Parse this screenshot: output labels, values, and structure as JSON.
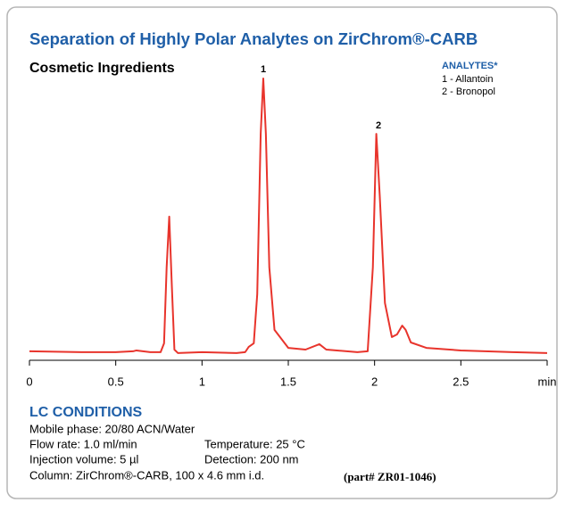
{
  "chart_data": {
    "type": "line",
    "title": "Separation of Highly Polar Analytes on ZirChrom®-CARB",
    "subtitle": "Cosmetic Ingredients",
    "legend": {
      "title": "ANALYTES*",
      "items": [
        "1 - Allantoin",
        "2 - Bronopol"
      ]
    },
    "peak_labels": [
      "1",
      "2"
    ],
    "color": "#e8342c",
    "x": [
      0,
      0.3,
      0.5,
      0.6,
      0.62,
      0.7,
      0.76,
      0.78,
      0.795,
      0.81,
      0.825,
      0.84,
      0.86,
      1.0,
      1.2,
      1.25,
      1.27,
      1.3,
      1.32,
      1.34,
      1.355,
      1.37,
      1.39,
      1.42,
      1.5,
      1.6,
      1.68,
      1.72,
      1.9,
      1.96,
      1.99,
      2.01,
      2.03,
      2.06,
      2.1,
      2.13,
      2.16,
      2.18,
      2.21,
      2.3,
      2.5,
      2.8,
      3
    ],
    "values": [
      1.9,
      1.6,
      1.6,
      1.9,
      2.2,
      1.6,
      1.6,
      4.7,
      31.3,
      49.1,
      25,
      2.5,
      1.3,
      1.6,
      1.3,
      1.6,
      3.4,
      4.7,
      21.9,
      78.1,
      97.5,
      78.1,
      31.3,
      9.4,
      3.1,
      2.5,
      4.4,
      2.5,
      1.6,
      1.9,
      31.3,
      78.1,
      56.3,
      18.8,
      6.9,
      7.8,
      10.9,
      9.4,
      5,
      3.1,
      2.2,
      1.6,
      1.3
    ],
    "xlim": [
      0,
      3
    ],
    "xticks": [
      0,
      0.5,
      1,
      1.5,
      2,
      2.5,
      {
        "value": 3,
        "label": "min"
      }
    ],
    "ylim": [
      0,
      100
    ]
  },
  "conditions": {
    "title": "LC CONDITIONS",
    "rows": [
      [
        "Mobile phase: 20/80 ACN/Water"
      ],
      [
        "Flow rate: 1.0 ml/min",
        "Temperature: 25 °C"
      ],
      [
        "Injection volume: 5 µl",
        "Detection: 200 nm"
      ],
      [
        "Column: ZirChrom®-CARB, 100 x 4.6 mm i.d."
      ]
    ],
    "part": "(part# ZR01-1046)"
  }
}
